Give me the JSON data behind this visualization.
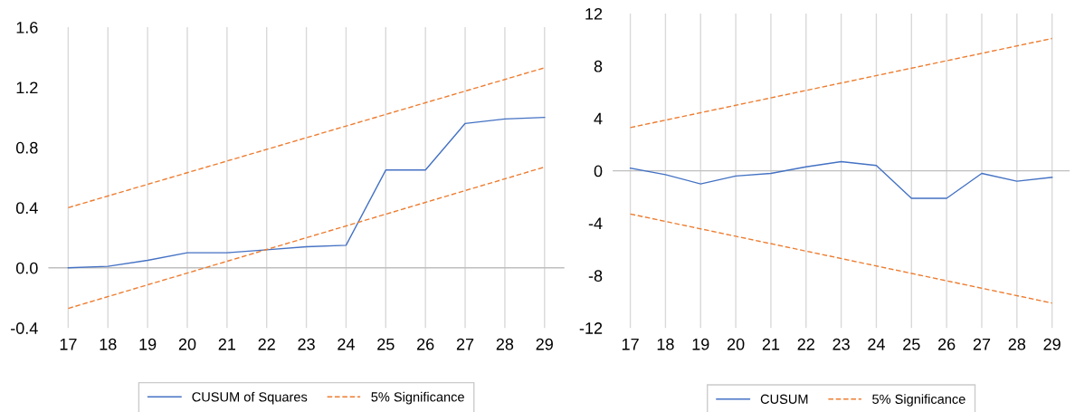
{
  "chart_data": [
    {
      "type": "line",
      "xlim": [
        16.5,
        29.5
      ],
      "xticks": [
        17,
        18,
        19,
        20,
        21,
        22,
        23,
        24,
        25,
        26,
        27,
        28,
        29
      ],
      "ylim": [
        -0.4,
        1.6
      ],
      "yticks": [
        {
          "value": -0.4,
          "label": "-0.4"
        },
        {
          "value": 0.0,
          "label": "0.0"
        },
        {
          "value": 0.4,
          "label": "0.4"
        },
        {
          "value": 0.8,
          "label": "0.8"
        },
        {
          "value": 1.2,
          "label": "1.2"
        },
        {
          "value": 1.6,
          "label": "1.6"
        }
      ],
      "grid": "x",
      "legend": "bottom",
      "ref_lines": [
        {
          "axis": "y",
          "value": 0,
          "color": "#bfbfbf"
        }
      ],
      "series": [
        {
          "name": "CUSUM of Squares",
          "color": "#4472c4",
          "line_style": "solid",
          "x": [
            17,
            18,
            19,
            20,
            21,
            22,
            23,
            24,
            25,
            26,
            27,
            28,
            29
          ],
          "values": [
            0.0,
            0.01,
            0.05,
            0.1,
            0.1,
            0.12,
            0.14,
            0.15,
            0.65,
            0.65,
            0.96,
            0.99,
            1.0
          ]
        },
        {
          "name": "5% Significance",
          "color": "#ed7d31",
          "line_style": "dashed",
          "x": [
            17,
            29
          ],
          "values": [
            0.4,
            1.33
          ]
        },
        {
          "color": "#ed7d31",
          "line_style": "dashed",
          "x": [
            17,
            29
          ],
          "values": [
            -0.27,
            0.67
          ]
        }
      ]
    },
    {
      "type": "line",
      "xlim": [
        16.5,
        29.5
      ],
      "xticks": [
        17,
        18,
        19,
        20,
        21,
        22,
        23,
        24,
        25,
        26,
        27,
        28,
        29
      ],
      "ylim": [
        -12,
        12
      ],
      "yticks": [
        -12,
        -8,
        -4,
        0,
        4,
        8,
        12
      ],
      "grid": "x",
      "legend": "bottom",
      "ref_lines": [
        {
          "axis": "y",
          "value": 0,
          "color": "#bfbfbf"
        }
      ],
      "series": [
        {
          "name": "CUSUM",
          "color": "#4472c4",
          "line_style": "solid",
          "x": [
            17,
            18,
            19,
            20,
            21,
            22,
            23,
            24,
            25,
            26,
            27,
            28,
            29
          ],
          "values": [
            0.2,
            -0.3,
            -1.0,
            -0.4,
            -0.2,
            0.3,
            0.7,
            0.4,
            -2.1,
            -2.1,
            -0.2,
            -0.8,
            -0.5
          ]
        },
        {
          "name": "5% Significance",
          "color": "#ed7d31",
          "line_style": "dashed",
          "x": [
            17,
            29
          ],
          "values": [
            3.3,
            10.1
          ]
        },
        {
          "color": "#ed7d31",
          "line_style": "dashed",
          "x": [
            17,
            29
          ],
          "values": [
            -3.3,
            -10.1
          ]
        }
      ]
    }
  ]
}
